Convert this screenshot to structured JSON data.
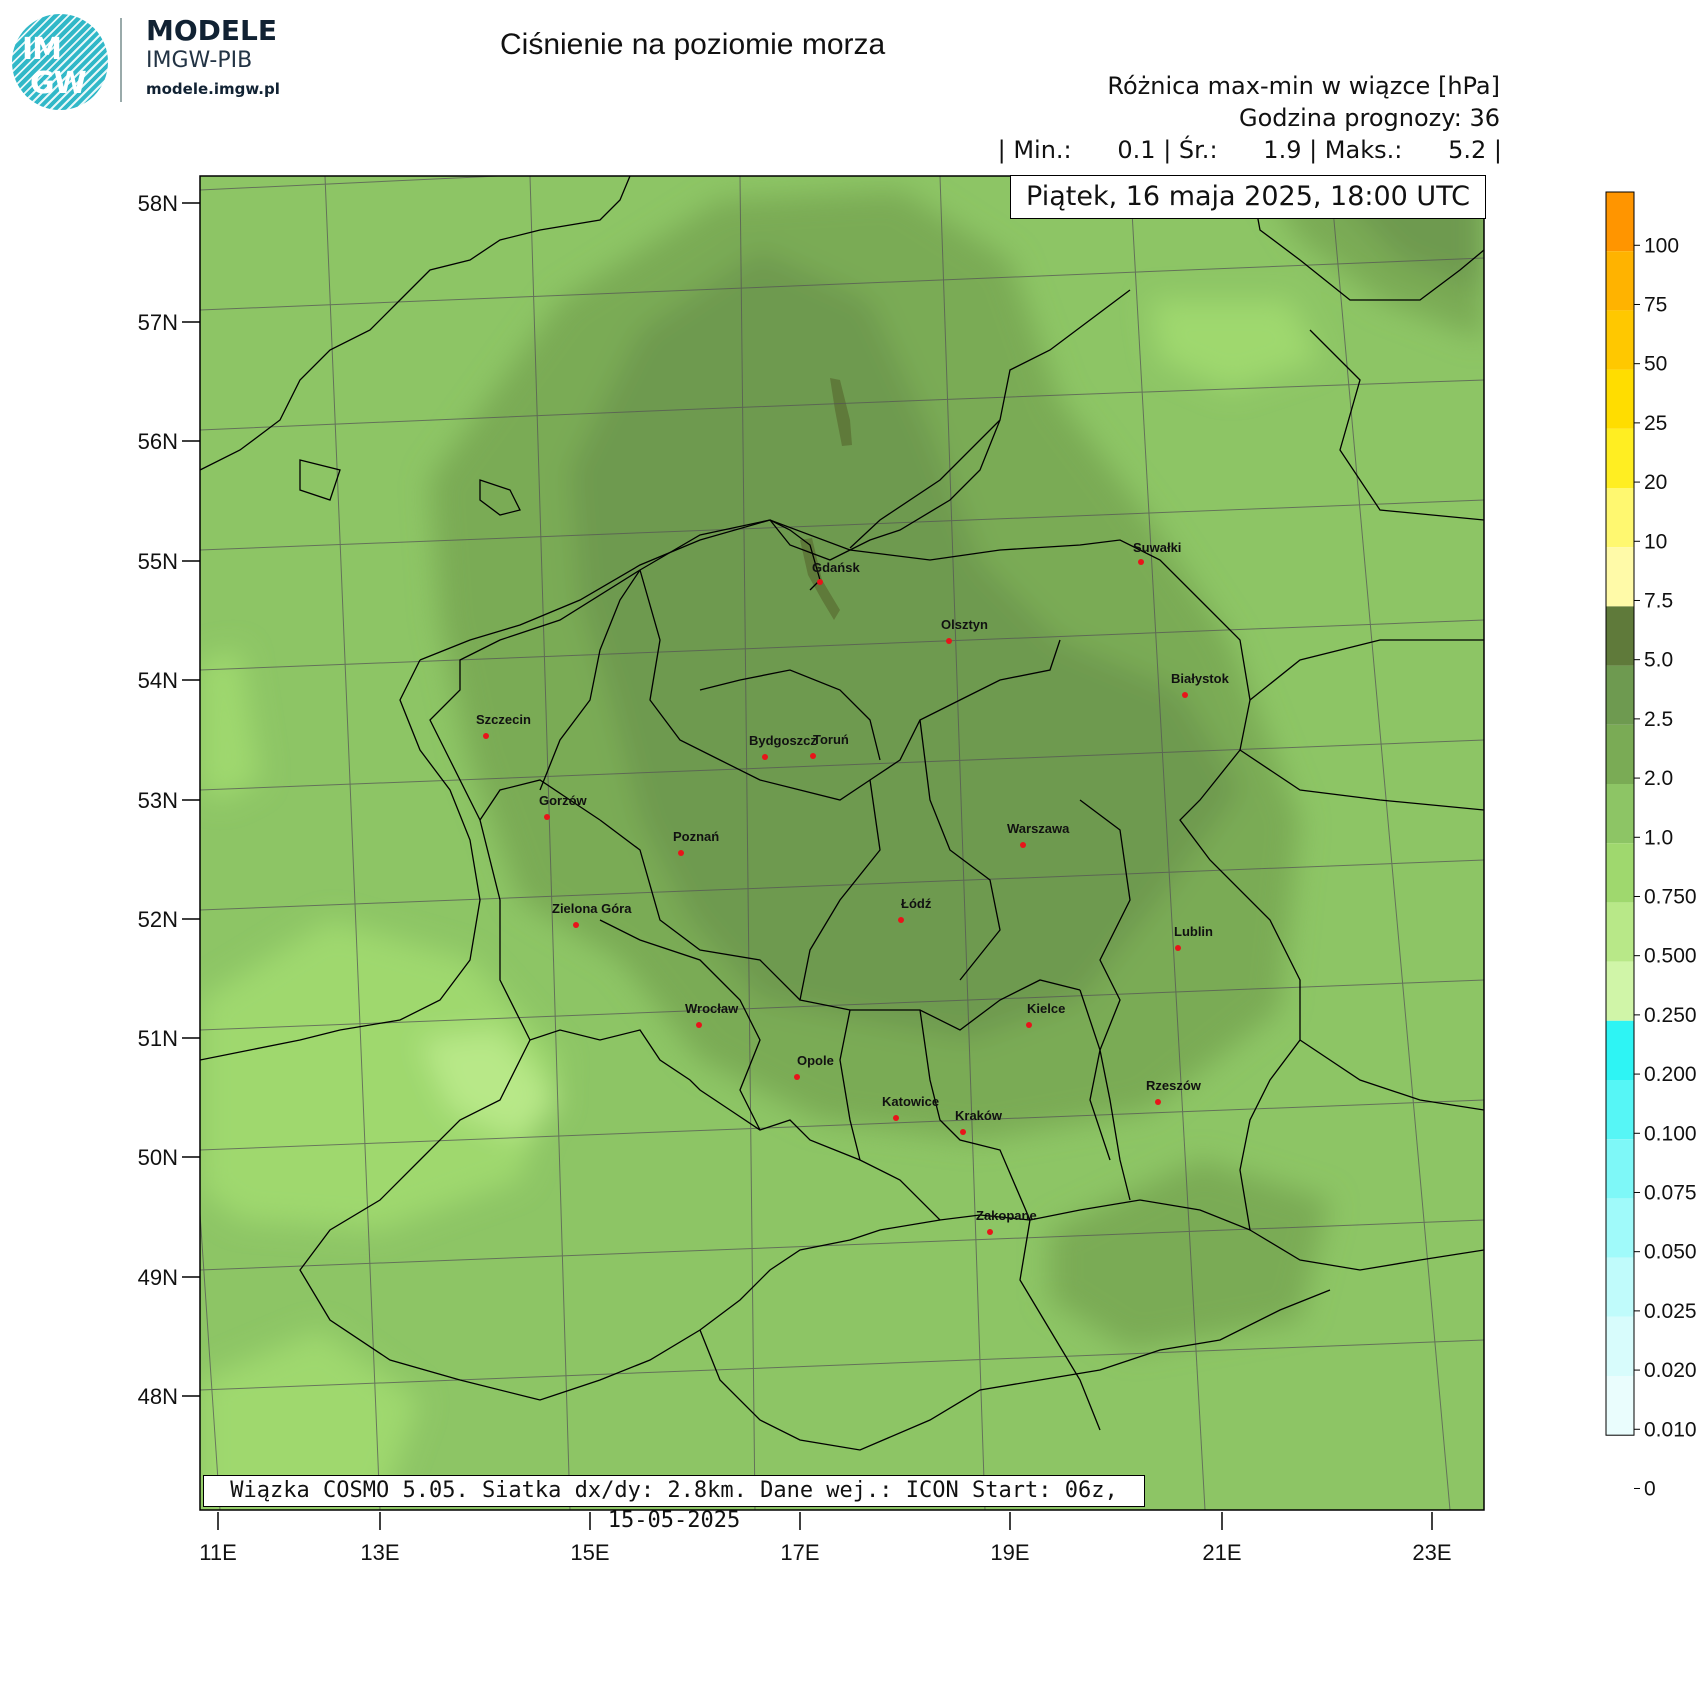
{
  "logo": {
    "badge_top": "IM",
    "badge_bottom": "GW",
    "name": "MODELE",
    "org": "IMGW-PIB",
    "url": "modele.imgw.pl"
  },
  "header": {
    "title": "Ciśnienie na poziomie morza",
    "subtitle": "Różnica max-min w wiązce [hPa]",
    "forecast_hour": "Godzina prognozy: 36",
    "stats": "| Min.:      0.1 | Śr.:      1.9 | Maks.:      5.2 |",
    "date": "Piątek, 16 maja 2025, 18:00 UTC"
  },
  "footer": "Wiązka COSMO 5.05. Siatka dx/dy: 2.8km. Dane wej.: ICON Start: 06z, 15-05-2025",
  "axes": {
    "lat_labels": [
      "58N",
      "57N",
      "56N",
      "55N",
      "54N",
      "53N",
      "52N",
      "51N",
      "50N",
      "49N",
      "48N"
    ],
    "lon_labels": [
      "11E",
      "13E",
      "15E",
      "17E",
      "19E",
      "21E",
      "23E"
    ]
  },
  "cities": [
    {
      "name": "Gdańsk"
    },
    {
      "name": "Suwałki"
    },
    {
      "name": "Olsztyn"
    },
    {
      "name": "Białystok"
    },
    {
      "name": "Szczecin"
    },
    {
      "name": "Bydgoszcz"
    },
    {
      "name": "Toruń"
    },
    {
      "name": "Gorzów"
    },
    {
      "name": "Poznań"
    },
    {
      "name": "Warszawa"
    },
    {
      "name": "Zielona Góra"
    },
    {
      "name": "Łódź"
    },
    {
      "name": "Lublin"
    },
    {
      "name": "Wrocław"
    },
    {
      "name": "Kielce"
    },
    {
      "name": "Opole"
    },
    {
      "name": "Rzeszów"
    },
    {
      "name": "Katowice"
    },
    {
      "name": "Kraków"
    },
    {
      "name": "Zakopane"
    }
  ],
  "colorbar": {
    "labels": [
      "100",
      "75",
      "50",
      "25",
      "20",
      "10",
      "7.5",
      "5.0",
      "2.5",
      "2.0",
      "1.0",
      "0.750",
      "0.500",
      "0.250",
      "0.200",
      "0.100",
      "0.075",
      "0.050",
      "0.025",
      "0.020",
      "0.010",
      "0"
    ],
    "colors": [
      "#ff9500",
      "#ffb300",
      "#ffc800",
      "#ffdd00",
      "#ffee22",
      "#fff870",
      "#fffaa8",
      "#5f7a3a",
      "#6e9a50",
      "#7aab55",
      "#8dc565",
      "#9fd86e",
      "#b8e888",
      "#d0f5a8",
      "#2ef4f4",
      "#56f6f6",
      "#7ef8f8",
      "#a0fafa",
      "#c0fbfb",
      "#d8fcfc",
      "#eafdfd",
      "#ffffff"
    ]
  },
  "map_colors": {
    "base": "#8dc565",
    "mid": "#7aab55",
    "dark": "#6e9a50",
    "darkest": "#5f7a3a",
    "light": "#9fd86e",
    "lighter": "#b8e888"
  }
}
